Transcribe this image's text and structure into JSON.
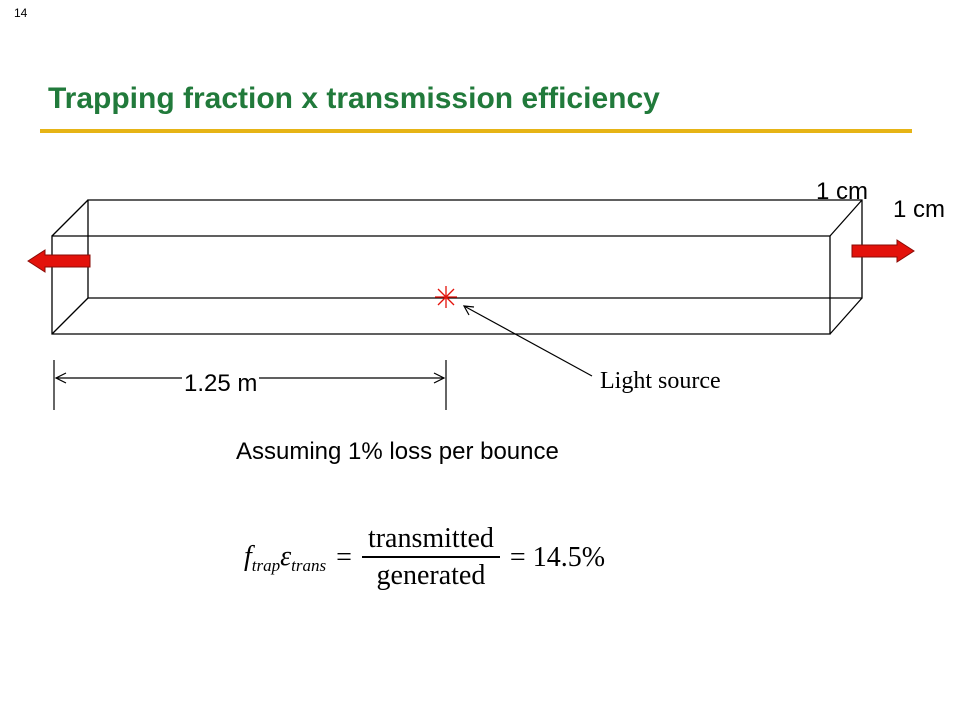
{
  "slide_number": "14",
  "title": "Trapping fraction x transmission efficiency",
  "colors": {
    "title": "#217a3b",
    "title_rule": "#e6b416",
    "arrow_fill": "#e3120b",
    "source_marker": "#e3120b"
  },
  "diagram": {
    "dimension_top": "1 cm",
    "dimension_right": "1 cm",
    "length": "1.25 m",
    "light_source": "Light source"
  },
  "caption": "Assuming 1% loss per bounce",
  "formula": {
    "f": "f",
    "f_sub": "trap",
    "eps": "ε",
    "eps_sub": "trans",
    "equals": "=",
    "numerator": "transmitted",
    "denominator": "generated",
    "result": "= 14.5%"
  }
}
